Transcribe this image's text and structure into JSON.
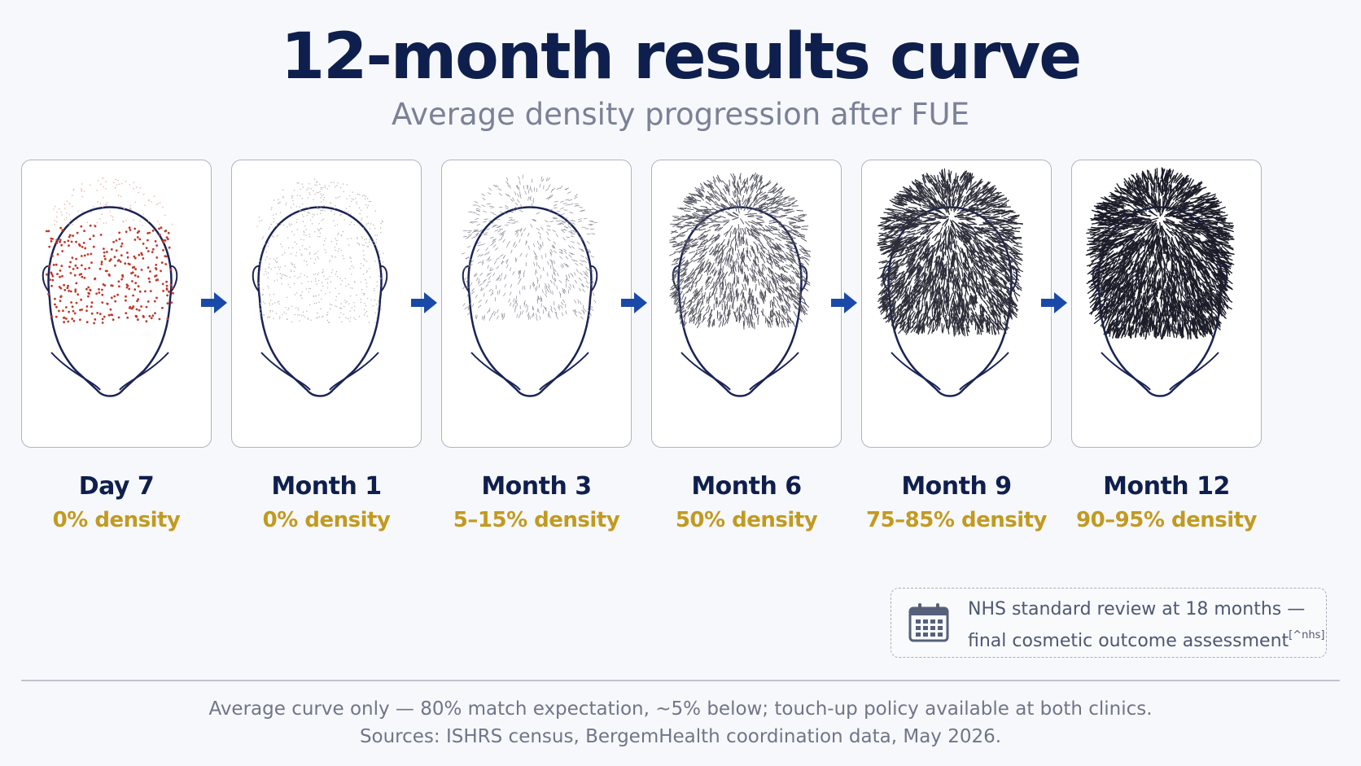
{
  "header": {
    "title": "12-month results curve",
    "subtitle": "Average density progression after FUE"
  },
  "stages": [
    {
      "label": "Day 7",
      "density": "0% density",
      "icon": "head-day7-icon",
      "hair_level": 0
    },
    {
      "label": "Month 1",
      "density": "0% density",
      "icon": "head-month1-icon",
      "hair_level": 0.02
    },
    {
      "label": "Month 3",
      "density": "5–15% density",
      "icon": "head-month3-icon",
      "hair_level": 0.15
    },
    {
      "label": "Month 6",
      "density": "50% density",
      "icon": "head-month6-icon",
      "hair_level": 0.5
    },
    {
      "label": "Month 9",
      "density": "75–85% density",
      "icon": "head-month9-icon",
      "hair_level": 0.8
    },
    {
      "label": "Month 12",
      "density": "90–95% density",
      "icon": "head-month12-icon",
      "hair_level": 0.93
    }
  ],
  "nhs_note": {
    "line1": "NHS standard review at 18 months —",
    "line2": "final cosmetic outcome assessment",
    "ref": "[^nhs]",
    "icon": "calendar-icon"
  },
  "footer": {
    "line1": "Average curve only — 80% match expectation, ~5% below; touch-up policy available at both clinics.",
    "line2": "Sources: ISHRS census, BergemHealth coordination data, May 2026."
  },
  "colors": {
    "title": "#0f1f4d",
    "density": "#c29a21",
    "arrow": "#1a4aa8",
    "outline": "#1b2456",
    "graft_dot": "#c0392b"
  }
}
